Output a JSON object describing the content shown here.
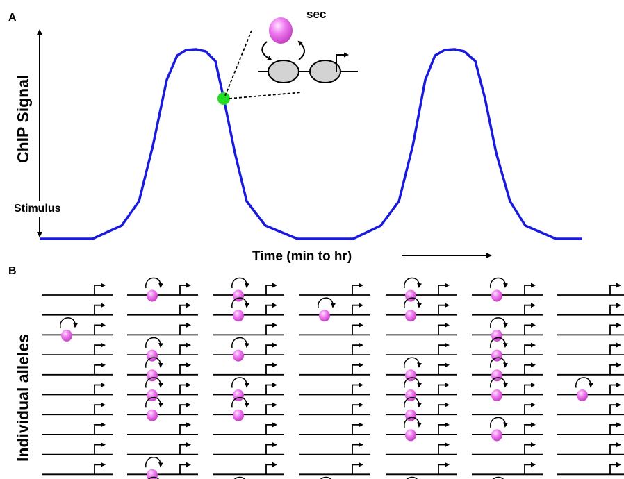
{
  "panel_a": {
    "label": "A",
    "y_axis_label": "ChIP Signal",
    "stimulus_label": "Stimulus",
    "x_axis_label": "Time (min to hr)",
    "inset_label": "sec",
    "curve_color": "#1a1adf",
    "marker_color": "#22dd22",
    "factor_color": "#ee66ee"
  },
  "panel_b": {
    "label": "B",
    "y_axis_label": "Individual alleles",
    "columns": [
      {
        "occupied_rows": [
          3
        ]
      },
      {
        "occupied_rows": [
          1,
          4,
          5,
          6,
          7,
          10,
          11
        ]
      },
      {
        "occupied_rows": [
          1,
          2,
          4,
          6,
          7,
          11
        ]
      },
      {
        "occupied_rows": [
          2,
          11
        ]
      },
      {
        "occupied_rows": [
          1,
          2,
          5,
          6,
          7,
          8,
          11
        ]
      },
      {
        "occupied_rows": [
          1,
          3,
          4,
          5,
          6,
          8,
          11
        ]
      },
      {
        "occupied_rows": [
          6
        ]
      }
    ]
  }
}
